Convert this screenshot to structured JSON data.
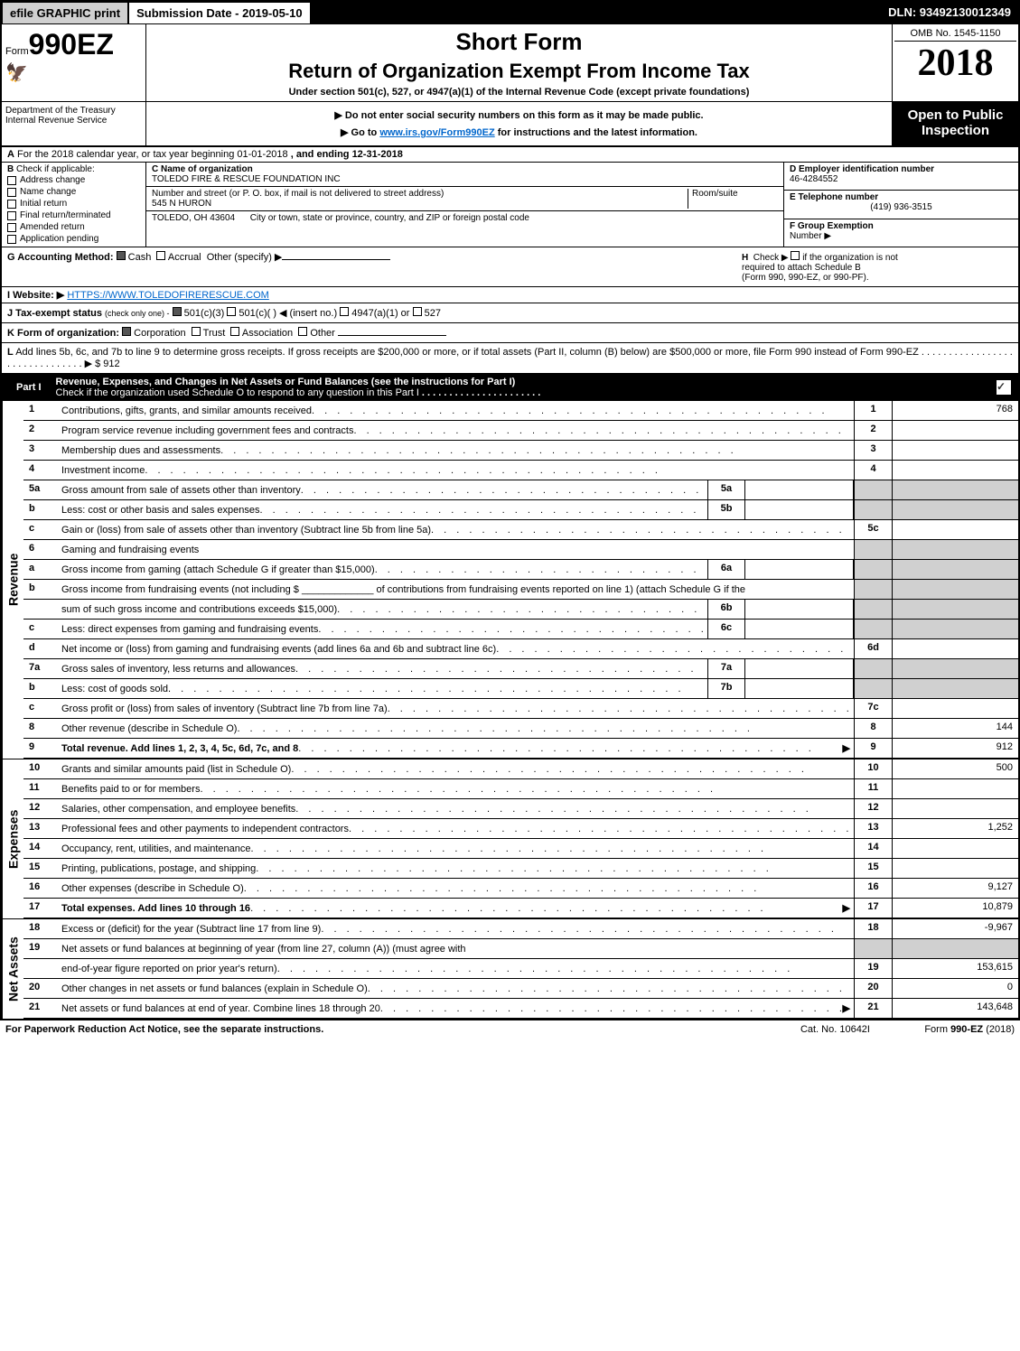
{
  "top_bar": {
    "efile": "efile GRAPHIC print",
    "submission": "Submission Date - 2019-05-10",
    "dln": "DLN: 93492130012349"
  },
  "form": {
    "prefix": "Form",
    "number": "990EZ",
    "short_form": "Short Form",
    "title": "Return of Organization Exempt From Income Tax",
    "under_section": "Under section 501(c), 527, or 4947(a)(1) of the Internal Revenue Code (except private foundations)",
    "do_not_enter": "▶ Do not enter social security numbers on this form as it may be made public.",
    "goto": "▶ Go to www.irs.gov/Form990EZ for instructions and the latest information.",
    "omb": "OMB No. 1545-1150",
    "year": "2018",
    "open_public": "Open to Public",
    "inspection": "Inspection",
    "dept": "Department of the Treasury",
    "irs": "Internal Revenue Service"
  },
  "line_a": {
    "label": "A",
    "text": "For the 2018 calendar year, or tax year beginning 01-01-2018",
    "ending": ", and ending 12-31-2018"
  },
  "section_b": {
    "label": "B",
    "check_if": "Check if applicable:",
    "items": [
      "Address change",
      "Name change",
      "Initial return",
      "Final return/terminated",
      "Amended return",
      "Application pending"
    ]
  },
  "entity": {
    "c_label": "C Name of organization",
    "c_value": "TOLEDO FIRE & RESCUE FOUNDATION INC",
    "street_label": "Number and street (or P. O. box, if mail is not delivered to street address)",
    "street_value": "545 N HURON",
    "room_label": "Room/suite",
    "city_label": "City or town, state or province, country, and ZIP or foreign postal code",
    "city_value": "TOLEDO, OH  43604",
    "d_label": "D Employer identification number",
    "d_value": "46-4284552",
    "e_label": "E Telephone number",
    "e_value": "(419) 936-3515",
    "f_label": "F Group Exemption",
    "f_label2": "Number  ▶"
  },
  "line_g": {
    "label": "G Accounting Method:",
    "cash": "Cash",
    "accrual": "Accrual",
    "other": "Other (specify) ▶"
  },
  "line_h": {
    "label": "H",
    "text1": "Check ▶",
    "text2": "if the organization is not",
    "text3": "required to attach Schedule B",
    "text4": "(Form 990, 990-EZ, or 990-PF)."
  },
  "line_i": {
    "label": "I Website: ▶",
    "value": "HTTPS://WWW.TOLEDOFIRERESCUE.COM"
  },
  "line_j": {
    "label": "J Tax-exempt status",
    "text": "(check only one) -",
    "opt1": "501(c)(3)",
    "opt2": "501(c)(  ) ◀ (insert no.)",
    "opt3": "4947(a)(1) or",
    "opt4": "527"
  },
  "line_k": {
    "label": "K Form of organization:",
    "corp": "Corporation",
    "trust": "Trust",
    "assoc": "Association",
    "other": "Other"
  },
  "line_l": {
    "label": "L",
    "text": "Add lines 5b, 6c, and 7b to line 9 to determine gross receipts. If gross receipts are $200,000 or more, or if total assets (Part II, column (B) below) are $500,000 or more, file Form 990 instead of Form 990-EZ",
    "arrow": "▶ $ 912"
  },
  "part1": {
    "label": "Part I",
    "title": "Revenue, Expenses, and Changes in Net Assets or Fund Balances (see the instructions for Part I)",
    "check_text": "Check if the organization used Schedule O to respond to any question in this Part I"
  },
  "sections": {
    "revenue": "Revenue",
    "expenses": "Expenses",
    "net_assets": "Net Assets"
  },
  "lines": [
    {
      "n": "1",
      "desc": "Contributions, gifts, grants, and similar amounts received",
      "rn": "1",
      "rv": "768"
    },
    {
      "n": "2",
      "desc": "Program service revenue including government fees and contracts",
      "rn": "2",
      "rv": ""
    },
    {
      "n": "3",
      "desc": "Membership dues and assessments",
      "rn": "3",
      "rv": ""
    },
    {
      "n": "4",
      "desc": "Investment income",
      "rn": "4",
      "rv": ""
    },
    {
      "n": "5a",
      "desc": "Gross amount from sale of assets other than inventory",
      "mn": "5a",
      "mv": ""
    },
    {
      "n": "b",
      "desc": "Less: cost or other basis and sales expenses",
      "mn": "5b",
      "mv": ""
    },
    {
      "n": "c",
      "desc": "Gain or (loss) from sale of assets other than inventory (Subtract line 5b from line 5a)",
      "rn": "5c",
      "rv": ""
    },
    {
      "n": "6",
      "desc": "Gaming and fundraising events"
    },
    {
      "n": "a",
      "desc": "Gross income from gaming (attach Schedule G if greater than $15,000)",
      "mn": "6a",
      "mv": ""
    },
    {
      "n": "b",
      "desc": "Gross income from fundraising events (not including $ _____________ of contributions from fundraising events reported on line 1) (attach Schedule G if the"
    },
    {
      "n": "",
      "desc": "sum of such gross income and contributions exceeds $15,000)",
      "mn": "6b",
      "mv": ""
    },
    {
      "n": "c",
      "desc": "Less: direct expenses from gaming and fundraising events",
      "mn": "6c",
      "mv": ""
    },
    {
      "n": "d",
      "desc": "Net income or (loss) from gaming and fundraising events (add lines 6a and 6b and subtract line 6c)",
      "rn": "6d",
      "rv": ""
    },
    {
      "n": "7a",
      "desc": "Gross sales of inventory, less returns and allowances",
      "mn": "7a",
      "mv": ""
    },
    {
      "n": "b",
      "desc": "Less: cost of goods sold",
      "mn": "7b",
      "mv": ""
    },
    {
      "n": "c",
      "desc": "Gross profit or (loss) from sales of inventory (Subtract line 7b from line 7a)",
      "rn": "7c",
      "rv": ""
    },
    {
      "n": "8",
      "desc": "Other revenue (describe in Schedule O)",
      "rn": "8",
      "rv": "144"
    },
    {
      "n": "9",
      "desc": "Total revenue. Add lines 1, 2, 3, 4, 5c, 6d, 7c, and 8",
      "rn": "9",
      "rv": "912",
      "bold": true,
      "arrow": true
    }
  ],
  "expense_lines": [
    {
      "n": "10",
      "desc": "Grants and similar amounts paid (list in Schedule O)",
      "rn": "10",
      "rv": "500"
    },
    {
      "n": "11",
      "desc": "Benefits paid to or for members",
      "rn": "11",
      "rv": ""
    },
    {
      "n": "12",
      "desc": "Salaries, other compensation, and employee benefits",
      "rn": "12",
      "rv": ""
    },
    {
      "n": "13",
      "desc": "Professional fees and other payments to independent contractors",
      "rn": "13",
      "rv": "1,252"
    },
    {
      "n": "14",
      "desc": "Occupancy, rent, utilities, and maintenance",
      "rn": "14",
      "rv": ""
    },
    {
      "n": "15",
      "desc": "Printing, publications, postage, and shipping",
      "rn": "15",
      "rv": ""
    },
    {
      "n": "16",
      "desc": "Other expenses (describe in Schedule O)",
      "rn": "16",
      "rv": "9,127"
    },
    {
      "n": "17",
      "desc": "Total expenses. Add lines 10 through 16",
      "rn": "17",
      "rv": "10,879",
      "bold": true,
      "arrow": true
    }
  ],
  "netasset_lines": [
    {
      "n": "18",
      "desc": "Excess or (deficit) for the year (Subtract line 17 from line 9)",
      "rn": "18",
      "rv": "-9,967"
    },
    {
      "n": "19",
      "desc": "Net assets or fund balances at beginning of year (from line 27, column (A)) (must agree with"
    },
    {
      "n": "",
      "desc": "end-of-year figure reported on prior year's return)",
      "rn": "19",
      "rv": "153,615"
    },
    {
      "n": "20",
      "desc": "Other changes in net assets or fund balances (explain in Schedule O)",
      "rn": "20",
      "rv": "0"
    },
    {
      "n": "21",
      "desc": "Net assets or fund balances at end of year. Combine lines 18 through 20",
      "rn": "21",
      "rv": "143,648",
      "arrow": true
    }
  ],
  "footer": {
    "left": "For Paperwork Reduction Act Notice, see the separate instructions.",
    "center": "Cat. No. 10642I",
    "right": "Form 990-EZ (2018)"
  },
  "colors": {
    "black": "#000000",
    "white": "#ffffff",
    "shade": "#d0d0d0",
    "link": "#0066cc"
  }
}
